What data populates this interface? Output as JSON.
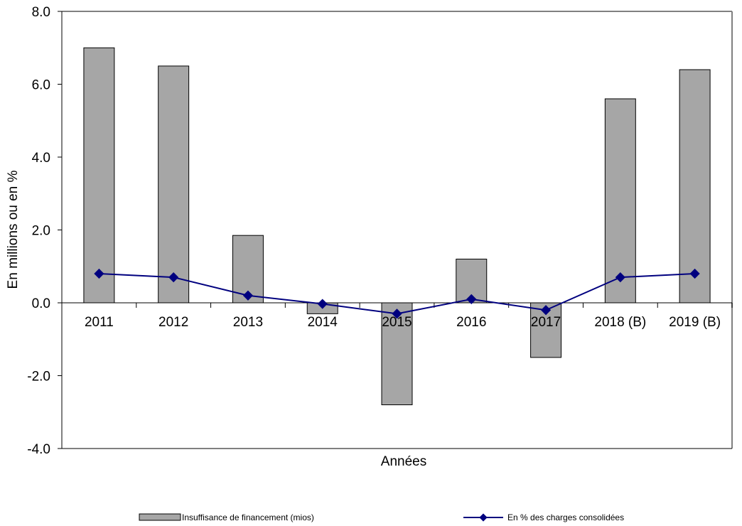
{
  "chart_data": {
    "type": "bar",
    "title": "",
    "xlabel": "Années",
    "ylabel": "En millions ou en %",
    "ylim": [
      -4.0,
      8.0
    ],
    "yticks": [
      "8.0",
      "6.0",
      "4.0",
      "2.0",
      "0.0",
      "-2.0",
      "-4.0"
    ],
    "categories": [
      "2011",
      "2012",
      "2013",
      "2014",
      "2015",
      "2016",
      "2017",
      "2018 (B)",
      "2019 (B)"
    ],
    "series": [
      {
        "name": "Insuffisance de financement (mios)",
        "type": "bar",
        "color": "#a6a6a6",
        "values": [
          7.0,
          6.5,
          1.85,
          -0.3,
          -2.8,
          1.2,
          -1.5,
          5.6,
          6.4
        ]
      },
      {
        "name": "En % des charges consolidées",
        "type": "line",
        "color": "#00007f",
        "values": [
          0.8,
          0.7,
          0.2,
          -0.03,
          -0.3,
          0.1,
          -0.2,
          0.7,
          0.8
        ]
      }
    ],
    "grid": false,
    "legend_position": "bottom"
  }
}
